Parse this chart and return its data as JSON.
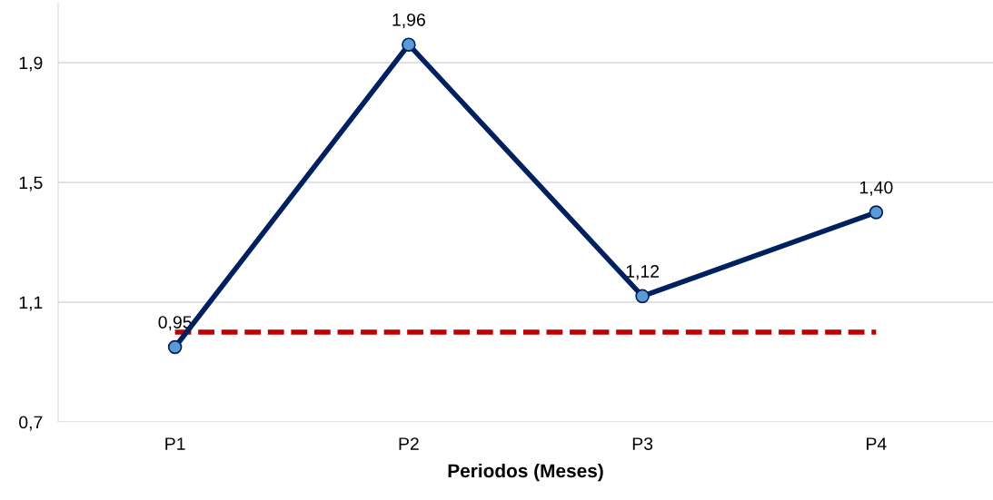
{
  "chart_data": {
    "type": "line",
    "xlabel": "Periodos (Meses)",
    "categories": [
      "P1",
      "P2",
      "P3",
      "P4"
    ],
    "series": [
      {
        "values": [
          0.95,
          1.96,
          1.12,
          1.4
        ],
        "color": "#002060",
        "marker": "circle",
        "line_style": "solid",
        "value_labels": [
          "0,95",
          "1,96",
          "1,12",
          "1,40"
        ]
      },
      {
        "values": [
          1.0,
          1.0,
          1.0,
          1.0
        ],
        "color": "#c00000",
        "marker": "none",
        "line_style": "dashed"
      }
    ],
    "ylim": [
      0.7,
      2.1
    ],
    "yticks": [
      {
        "value": 0.7,
        "label": "0,7"
      },
      {
        "value": 1.1,
        "label": "1,1"
      },
      {
        "value": 1.5,
        "label": "1,5"
      },
      {
        "value": 1.9,
        "label": "1,9"
      }
    ],
    "grid": "y",
    "legend": false
  }
}
